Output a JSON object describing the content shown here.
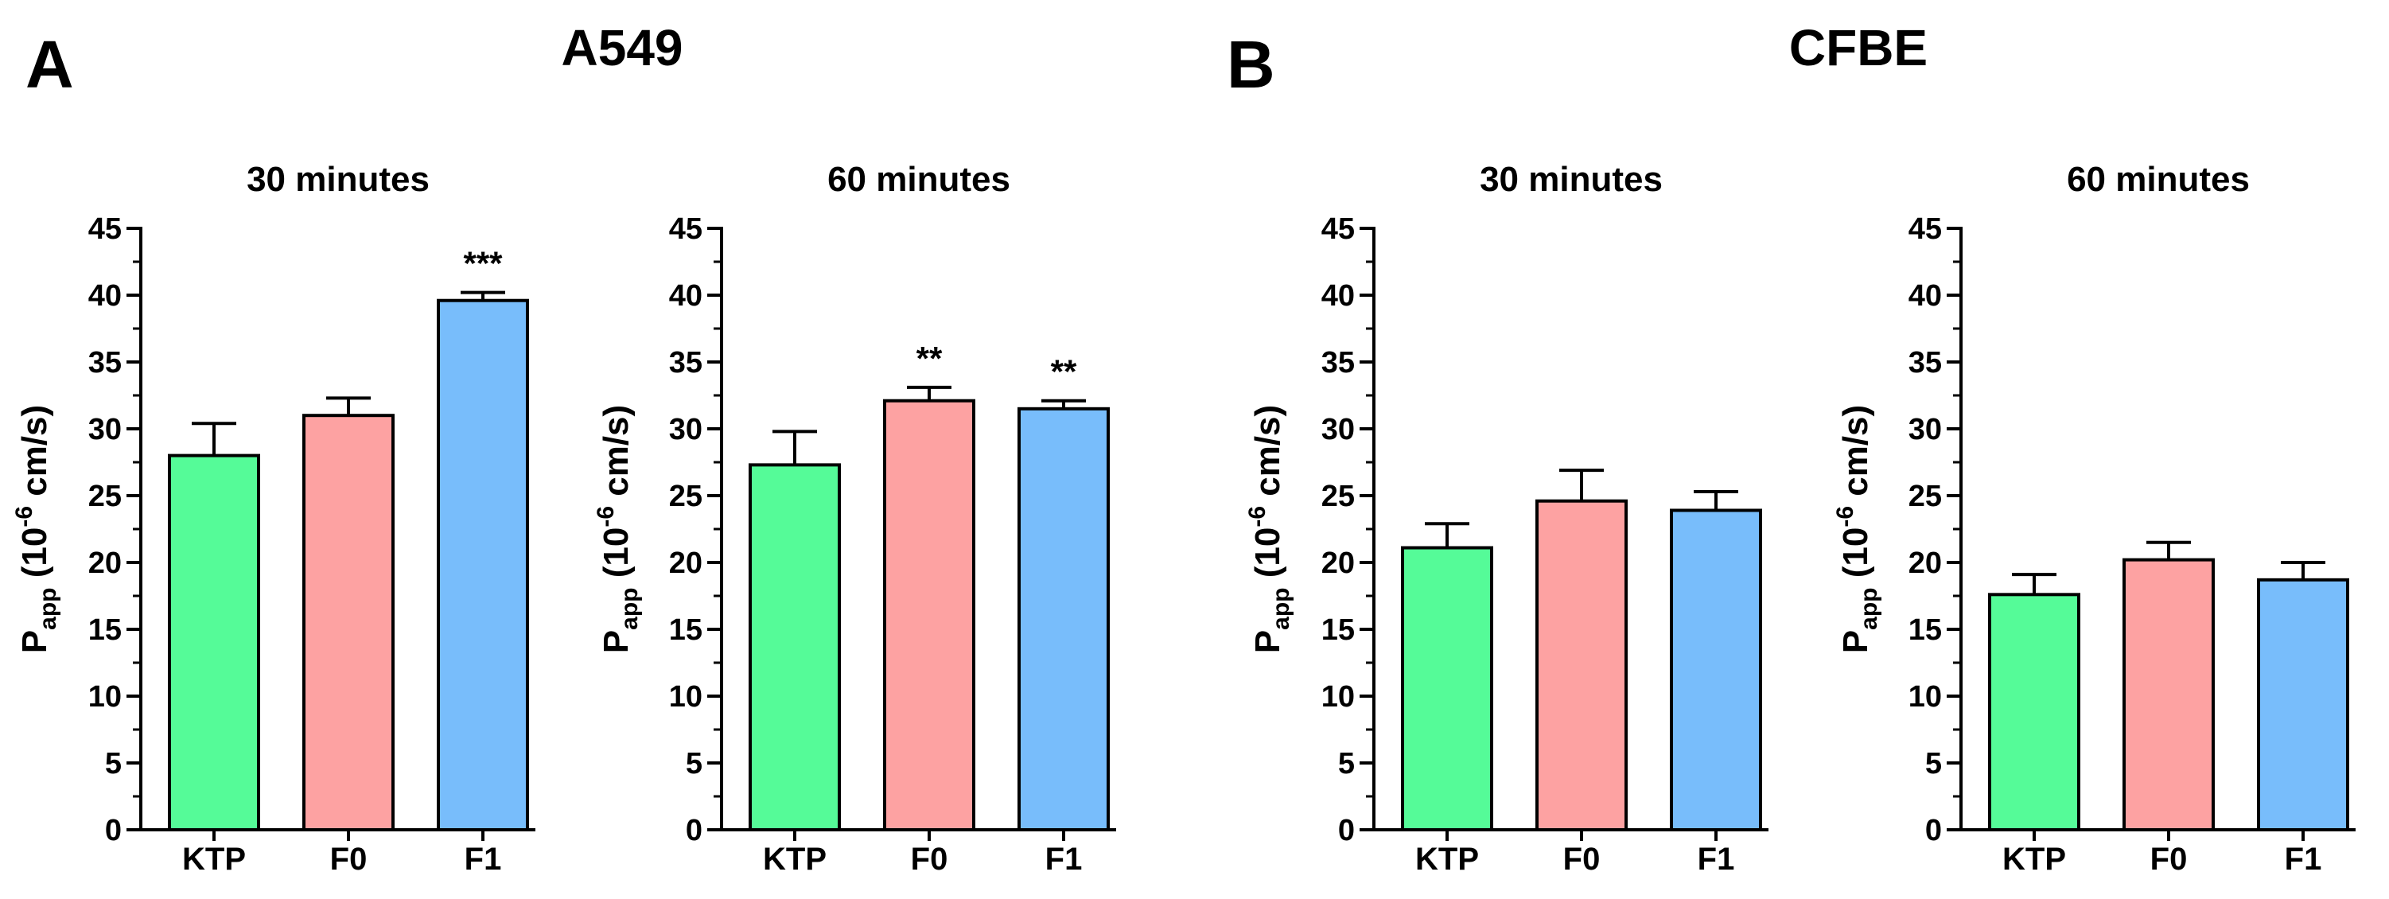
{
  "panels": [
    {
      "letter": "A",
      "title": "A549"
    },
    {
      "letter": "B",
      "title": "CFBE"
    }
  ],
  "ylabel": {
    "main": "P",
    "sub": "app",
    "open": " (10",
    "sup": "-6",
    "close": " cm/s)"
  },
  "colors": {
    "KTP": "#55fb98",
    "F0": "#fda2a2",
    "F1": "#78bdfb",
    "axis": "#000000"
  },
  "chart_data": [
    {
      "type": "bar",
      "panel": "A",
      "title": "30 minutes",
      "categories": [
        "KTP",
        "F0",
        "F1"
      ],
      "values": [
        28.0,
        31.0,
        39.6
      ],
      "error": [
        2.4,
        1.3,
        0.6
      ],
      "significance": [
        "",
        "",
        "***"
      ],
      "ylim": [
        0,
        45
      ],
      "yticks": [
        0,
        5,
        10,
        15,
        20,
        25,
        30,
        35,
        40,
        45
      ]
    },
    {
      "type": "bar",
      "panel": "A",
      "title": "60 minutes",
      "categories": [
        "KTP",
        "F0",
        "F1"
      ],
      "values": [
        27.3,
        32.1,
        31.5
      ],
      "error": [
        2.5,
        1.0,
        0.6
      ],
      "significance": [
        "",
        "**",
        "**"
      ],
      "ylim": [
        0,
        45
      ],
      "yticks": [
        0,
        5,
        10,
        15,
        20,
        25,
        30,
        35,
        40,
        45
      ]
    },
    {
      "type": "bar",
      "panel": "B",
      "title": "30 minutes",
      "categories": [
        "KTP",
        "F0",
        "F1"
      ],
      "values": [
        21.1,
        24.6,
        23.9
      ],
      "error": [
        1.8,
        2.3,
        1.4
      ],
      "significance": [
        "",
        "",
        ""
      ],
      "ylim": [
        0,
        45
      ],
      "yticks": [
        0,
        5,
        10,
        15,
        20,
        25,
        30,
        35,
        40,
        45
      ]
    },
    {
      "type": "bar",
      "panel": "B",
      "title": "60 minutes",
      "categories": [
        "KTP",
        "F0",
        "F1"
      ],
      "values": [
        17.6,
        20.2,
        18.7
      ],
      "error": [
        1.5,
        1.3,
        1.3
      ],
      "significance": [
        "",
        "",
        ""
      ],
      "ylim": [
        0,
        45
      ],
      "yticks": [
        0,
        5,
        10,
        15,
        20,
        25,
        30,
        35,
        40,
        45
      ]
    }
  ]
}
